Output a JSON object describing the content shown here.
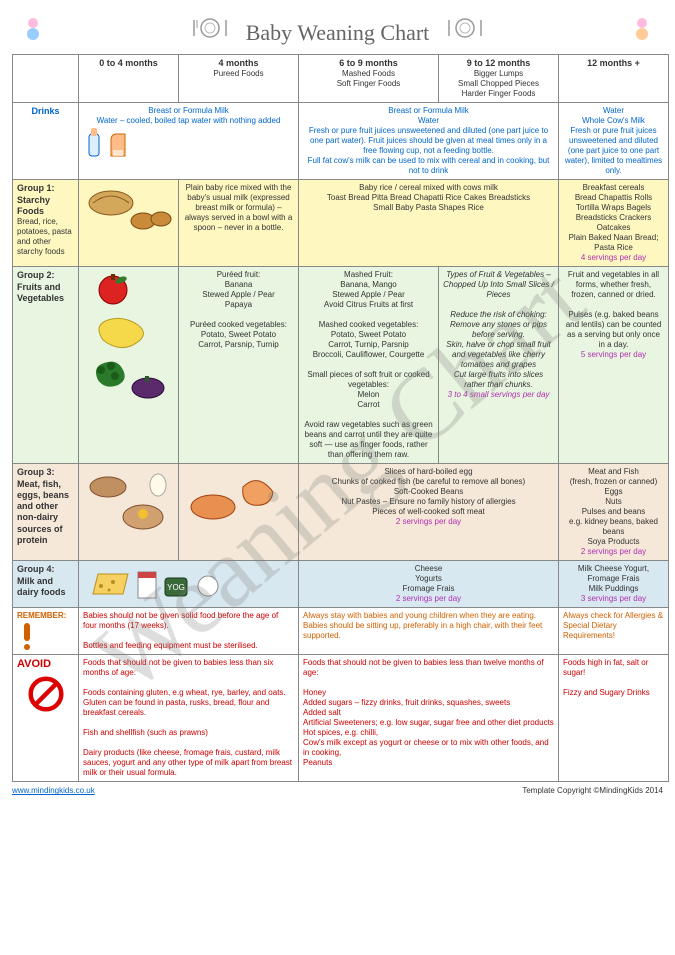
{
  "title": "Baby Weaning Chart",
  "columns": [
    {
      "head": "0 to 4 months",
      "sub": ""
    },
    {
      "head": "4 months",
      "sub": "Pureed Foods"
    },
    {
      "head": "6 to 9 months",
      "sub": "Mashed Foods\nSoft Finger Foods"
    },
    {
      "head": "9 to 12 months",
      "sub": "Bigger Lumps\nSmall Chopped Pieces\nHarder Finger Foods"
    },
    {
      "head": "12 months +",
      "sub": ""
    }
  ],
  "drinks": {
    "label": "Drinks",
    "a": "Breast or Formula Milk\nWater – cooled, boiled tap water with nothing added",
    "b": "Breast or Formula Milk\nWater\nFresh or pure fruit juices unsweetened and diluted (one part juice to one part water). Fruit juices should be given at meal times only in a free flowing cup, not a feeding bottle.\nFull fat cow's milk can be used to mix with cereal and in cooking, but not to drink",
    "c": "Water\nWhole Cow's Milk\nFresh or pure fruit juices unsweetened and diluted (one part juice to one part water), limited to mealtimes only."
  },
  "g1": {
    "label": "Group 1: Starchy Foods",
    "sub": "Bread, rice, potatoes, pasta and other starchy foods",
    "c4m": "Plain baby rice mixed with the baby's usual milk (expressed breast milk or formula) – always served in a bowl with a spoon – never in a bottle.",
    "c69": "Baby rice / cereal mixed with cows milk\nToast   Bread   Pitta Bread   Chapatti   Rice Cakes   Breadsticks\nSmall Baby Pasta Shapes   Rice",
    "c12": "Breakfast cereals\nBread   Chapattis   Rolls\nTortilla Wraps   Bagels\nBreadsticks   Crackers\nOatcakes\nPlain Baked Naan Bread;\nPasta   Rice",
    "s12": "4 servings per day"
  },
  "g2": {
    "label": "Group 2: Fruits and Vegetables",
    "c4m": "Puréed fruit:\nBanana\nStewed Apple / Pear\nPapaya\n\nPuréed cooked vegetables:\nPotato, Sweet Potato\nCarrot, Parsnip, Turnip",
    "c69": "Mashed Fruit:\nBanana, Mango\nStewed Apple / Pear\nAvoid Citrus Fruits at first\n\nMashed cooked vegetables:\nPotato, Sweet Potato\nCarrot, Turnip, Parsnip\nBroccoli, Cauliflower, Courgette\n\nSmall pieces of soft fruit or cooked vegetables:\nMelon\nCarrot\n\nAvoid raw vegetables such as green beans and carrot until they are quite soft — use as finger foods, rather than offering them raw.",
    "c912": "Types of Fruit & Vegetables – Chopped Up Into Small Slices / Pieces\n\nReduce the risk of choking:\nRemove any stones or pips before serving.\nSkin, halve or chop small fruit and vegetables like cherry tomatoes and grapes\nCut large fruits into slices rather than chunks.",
    "s912": "3 to 4 small servings per day",
    "c12": "Fruit and vegetables in all forms, whether fresh, frozen, canned or dried.\n\nPulses (e.g. baked beans and lentils) can be counted as a serving but only once in a day.",
    "s12": "5 servings per day"
  },
  "g3": {
    "label": "Group 3: Meat, fish, eggs, beans and other non-dairy sources of protein",
    "c69": "Slices of hard-boiled egg\nChunks of cooked fish (be careful to remove all bones)\nSoft-Cooked Beans\nNut Pastes – Ensure no family history of allergies\nPieces of well-cooked soft meat",
    "s69": "2 servings per day",
    "c12": "Meat and Fish\n(fresh, frozen or canned)\nEggs\nNuts\nPulses and beans\ne.g. kidney beans, baked beans\nSoya Products",
    "s12": "2 servings per day"
  },
  "g4": {
    "label": "Group 4: Milk and dairy foods",
    "c69": "Cheese\nYogurts\nFromage Frais",
    "s69": "2 servings per day",
    "c12": "Milk   Cheese   Yogurt, Fromage Frais\nMilk Puddings",
    "s12": "3 servings per day"
  },
  "remember": {
    "label": "REMEMBER:",
    "a": "Babies should not be given solid food before the age of four months (17 weeks).\n\nBottles and feeding equipment must be sterilised.",
    "b": "Always stay with babies and young children when they are eating. Babies should be sitting up, preferably in a high chair, with their feet supported.",
    "c": "Always check for Allergies & Special Dietary Requirements!"
  },
  "avoid": {
    "label": "AVOID",
    "a": "Foods that should not be given to babies less than six months of age:\n\nFoods containing gluten, e.g wheat, rye, barley, and oats. Gluten can be found in pasta, rusks, bread, flour and breakfast cereals.\n\nFish and shellfish (such as prawns)\n\nDairy products (like cheese, fromage frais, custard, milk sauces, yogurt and any other type of milk apart from breast milk or their usual formula.",
    "b": "Foods that should not be given to babies less than twelve months of age:\n\nHoney\nAdded sugars – fizzy drinks, fruit drinks, squashes, sweets\nAdded salt\nArtificial Sweeteners; e.g. low sugar, sugar free and other diet products\nHot spices, e.g. chilli,\nCow's milk except as yogurt or cheese or to mix with other foods, and in cooking,\nPeanuts",
    "c": "Foods high in fat, salt or sugar!\n\nFizzy and Sugary Drinks"
  },
  "footer": {
    "link": "www.mindingkids.co.uk",
    "copy": "Template Copyright ©MindingKids 2014"
  },
  "watermark": "Weaning Chart"
}
